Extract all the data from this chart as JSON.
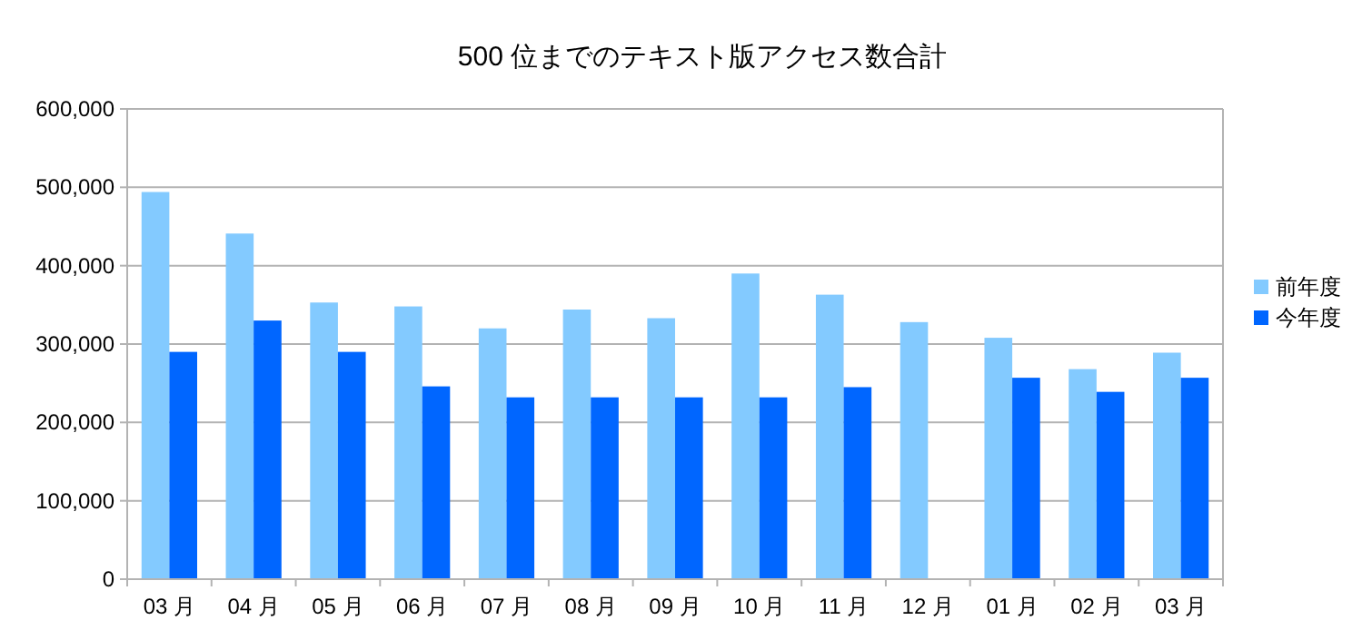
{
  "chart_data": {
    "type": "bar",
    "title": "500 位までのテキスト版アクセス数合計",
    "categories": [
      "03 月",
      "04 月",
      "05 月",
      "06 月",
      "07 月",
      "08 月",
      "09 月",
      "10 月",
      "11 月",
      "12 月",
      "01 月",
      "02 月",
      "03 月"
    ],
    "series": [
      {
        "name": "前年度",
        "color": "#83caff",
        "values": [
          494000,
          441000,
          353000,
          348000,
          320000,
          344000,
          333000,
          390000,
          363000,
          328000,
          308000,
          268000,
          289000
        ]
      },
      {
        "name": "今年度",
        "color": "#0066ff",
        "values": [
          290000,
          330000,
          290000,
          246000,
          232000,
          232000,
          232000,
          232000,
          245000,
          null,
          257000,
          239000,
          257000
        ]
      }
    ],
    "ylim": [
      0,
      600000
    ],
    "yticks": [
      {
        "value": 0,
        "label": "0"
      },
      {
        "value": 100000,
        "label": "100,000"
      },
      {
        "value": 200000,
        "label": "200,000"
      },
      {
        "value": 300000,
        "label": "300,000"
      },
      {
        "value": 400000,
        "label": "400,000"
      },
      {
        "value": 500000,
        "label": "500,000"
      },
      {
        "value": 600000,
        "label": "600,000"
      }
    ],
    "grid": "y",
    "legend": "right"
  }
}
